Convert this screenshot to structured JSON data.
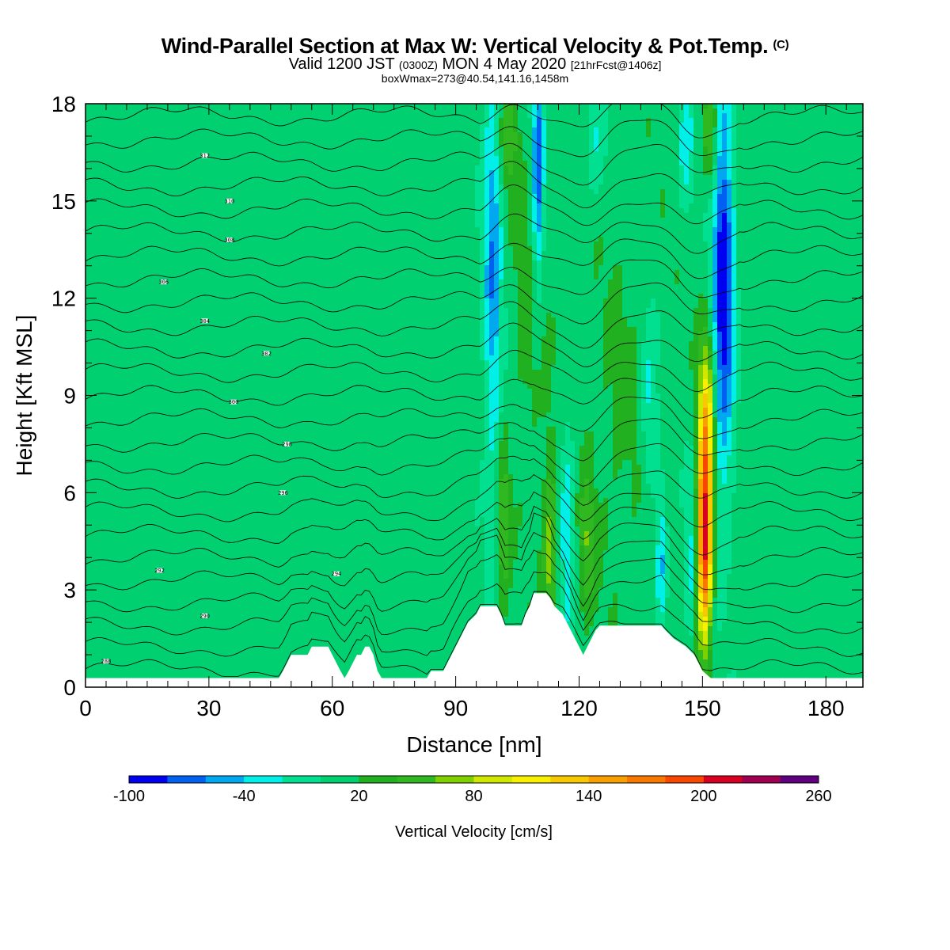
{
  "header": {
    "title": "Wind-Parallel Section at Max W: Vertical Velocity & Pot.Temp.",
    "title_badge": "(C)",
    "valid_prefix": "Valid 1200 JST",
    "valid_utc": "(0300Z)",
    "valid_date": "MON 4 May 2020",
    "valid_fcst": "[21hrFcst@1406z]",
    "box_info": "boxWmax=273@40.54,141.16,1458m"
  },
  "chart_data": {
    "type": "heatmap",
    "title": "Wind-Parallel Section at Max W: Vertical Velocity & Pot.Temp.",
    "xlabel": "Distance [nm]",
    "ylabel": "Height [Kft MSL]",
    "xlim": [
      0,
      189
    ],
    "ylim": [
      0,
      18
    ],
    "xticks": [
      0,
      30,
      60,
      90,
      120,
      150,
      180
    ],
    "yticks": [
      0,
      3,
      6,
      9,
      12,
      15,
      18
    ],
    "colorbar": {
      "title": "Vertical Velocity [cm/s]",
      "tick_labels": [
        "-100",
        "-40",
        "20",
        "80",
        "140",
        "200",
        "260"
      ],
      "boundaries": [
        -100,
        -80,
        -60,
        -40,
        -20,
        0,
        20,
        40,
        60,
        80,
        100,
        120,
        140,
        160,
        180,
        200,
        220,
        240,
        260
      ],
      "colors": [
        "#0000f0",
        "#0060f0",
        "#00a8f0",
        "#00f0e8",
        "#00e090",
        "#00d070",
        "#20b020",
        "#30b820",
        "#80d000",
        "#d0e800",
        "#f8f000",
        "#f8c800",
        "#f8a000",
        "#f87800",
        "#f84800",
        "#d80020",
        "#a00050",
        "#600080"
      ]
    },
    "background_velocity": 10,
    "updrafts": [
      {
        "x": 150.5,
        "z": 4.5,
        "w": 205,
        "sx": 1.3,
        "sz": 2.2
      },
      {
        "x": 151,
        "z": 8.5,
        "w": 95,
        "sx": 1.4,
        "sz": 1.8
      },
      {
        "x": 152,
        "z": 17,
        "w": 55,
        "sx": 1.3,
        "sz": 1.2
      },
      {
        "x": 113,
        "z": 4.0,
        "w": 65,
        "sx": 1.3,
        "sz": 2.0
      },
      {
        "x": 101.5,
        "z": 5.0,
        "w": 50,
        "sx": 1.1,
        "sz": 1.8
      },
      {
        "x": 103,
        "z": 17,
        "w": 48,
        "sx": 1.6,
        "sz": 1.2
      },
      {
        "x": 122,
        "z": 4.5,
        "w": 45,
        "sx": 1.3,
        "sz": 1.5
      },
      {
        "x": 108,
        "z": 11,
        "w": 22,
        "sx": 3.0,
        "sz": 3.0
      },
      {
        "x": 130,
        "z": 8,
        "w": 14,
        "sx": 6.0,
        "sz": 4.0
      }
    ],
    "downdrafts": [
      {
        "x": 99,
        "z": 13,
        "w": -65,
        "sx": 1.6,
        "sz": 5.0
      },
      {
        "x": 110,
        "z": 16,
        "w": -80,
        "sx": 1.0,
        "sz": 3.0
      },
      {
        "x": 155,
        "z": 12.5,
        "w": -105,
        "sx": 1.8,
        "sz": 4.5
      },
      {
        "x": 140,
        "z": 4.0,
        "w": -60,
        "sx": 1.0,
        "sz": 1.5
      },
      {
        "x": 137,
        "z": 8.5,
        "w": -40,
        "sx": 1.5,
        "sz": 2.0
      },
      {
        "x": 117,
        "z": 5.0,
        "w": -45,
        "sx": 1.3,
        "sz": 2.5
      },
      {
        "x": 147.5,
        "z": 4.0,
        "w": -40,
        "sx": 1.3,
        "sz": 2.0
      },
      {
        "x": 146,
        "z": 17,
        "w": -40,
        "sx": 1.2,
        "sz": 1.5
      },
      {
        "x": 124,
        "z": 17,
        "w": -30,
        "sx": 1.5,
        "sz": 1.5
      }
    ],
    "terrain_kft": [
      [
        0,
        0.28
      ],
      [
        47,
        0.28
      ],
      [
        48,
        0.5
      ],
      [
        49,
        0.75
      ],
      [
        50,
        1.0
      ],
      [
        54,
        1.0
      ],
      [
        55,
        1.25
      ],
      [
        59,
        1.25
      ],
      [
        60,
        1.0
      ],
      [
        61,
        0.75
      ],
      [
        62,
        0.5
      ],
      [
        63,
        0.28
      ],
      [
        64,
        0.5
      ],
      [
        65,
        0.75
      ],
      [
        66,
        1.0
      ],
      [
        67,
        1.0
      ],
      [
        68,
        1.25
      ],
      [
        69,
        1.25
      ],
      [
        70,
        1.0
      ],
      [
        71,
        0.5
      ],
      [
        72,
        0.28
      ],
      [
        83,
        0.28
      ],
      [
        84,
        0.5
      ],
      [
        87,
        0.5
      ],
      [
        88,
        0.75
      ],
      [
        89,
        1.0
      ],
      [
        90,
        1.25
      ],
      [
        91,
        1.5
      ],
      [
        92,
        1.75
      ],
      [
        93,
        2.0
      ],
      [
        95,
        2.25
      ],
      [
        96,
        2.5
      ],
      [
        100,
        2.5
      ],
      [
        101,
        2.25
      ],
      [
        102,
        1.9
      ],
      [
        106,
        1.9
      ],
      [
        107,
        2.25
      ],
      [
        108,
        2.5
      ],
      [
        109,
        2.9
      ],
      [
        112,
        2.9
      ],
      [
        113,
        2.75
      ],
      [
        114,
        2.5
      ],
      [
        116,
        2.25
      ],
      [
        117,
        2.0
      ],
      [
        118,
        1.75
      ],
      [
        119,
        1.5
      ],
      [
        120,
        1.25
      ],
      [
        121,
        1.0
      ],
      [
        122,
        1.25
      ],
      [
        123,
        1.5
      ],
      [
        124,
        1.75
      ],
      [
        125,
        1.9
      ],
      [
        132,
        1.9
      ],
      [
        133,
        1.9
      ],
      [
        140,
        1.9
      ],
      [
        141,
        1.75
      ],
      [
        143,
        1.5
      ],
      [
        146,
        1.25
      ],
      [
        148,
        1.0
      ],
      [
        149,
        0.75
      ],
      [
        150,
        0.5
      ],
      [
        152,
        0.28
      ],
      [
        189,
        0.28
      ]
    ],
    "isentrope_labels": [
      {
        "x": 5,
        "z": 0.8,
        "label": "288"
      },
      {
        "x": 29,
        "z": 2.2,
        "label": "290"
      },
      {
        "x": 18,
        "z": 3.6,
        "label": "292"
      },
      {
        "x": 61,
        "z": 3.5,
        "label": "294"
      },
      {
        "x": 48,
        "z": 6.0,
        "label": "296"
      },
      {
        "x": 49,
        "z": 7.5,
        "label": "298"
      },
      {
        "x": 36,
        "z": 8.8,
        "label": "300"
      },
      {
        "x": 44,
        "z": 10.3,
        "label": "302"
      },
      {
        "x": 29,
        "z": 11.3,
        "label": "304"
      },
      {
        "x": 19,
        "z": 12.5,
        "label": "306"
      },
      {
        "x": 35,
        "z": 13.8,
        "label": "308"
      },
      {
        "x": 35,
        "z": 15.0,
        "label": "310"
      },
      {
        "x": 29,
        "z": 16.4,
        "label": "312"
      }
    ]
  }
}
